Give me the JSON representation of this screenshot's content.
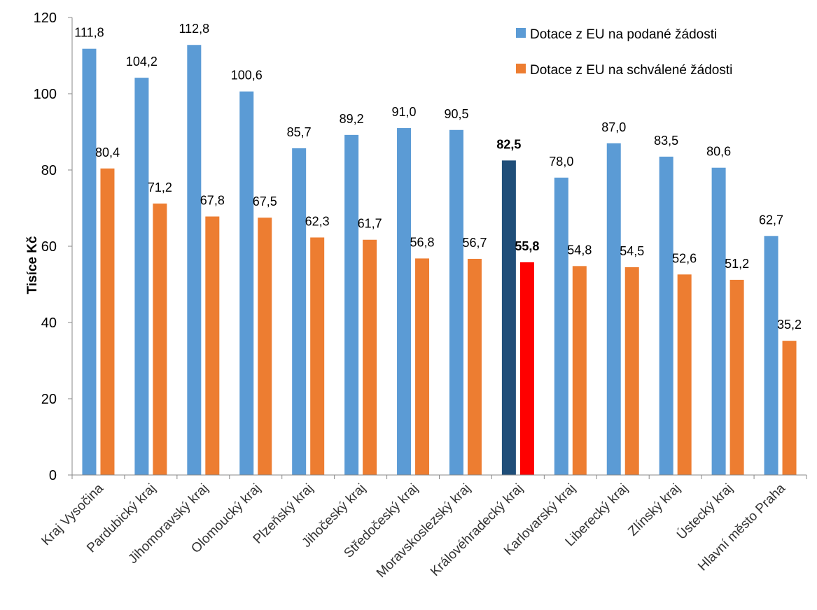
{
  "chart_data": {
    "type": "bar",
    "title": "",
    "xlabel": "",
    "ylabel": "Tisíce Kč",
    "ylim": [
      0,
      120
    ],
    "yticks": [
      "0",
      "20",
      "40",
      "60",
      "80",
      "100",
      "120"
    ],
    "grid": false,
    "legend_position": "top-right",
    "categories": [
      "Kraj Vysočina",
      "Pardubický kraj",
      "Jihomoravský kraj",
      "Olomoucký kraj",
      "Plzeňský kraj",
      "Jihočeský kraj",
      "Středočeský kraj",
      "Moravskoslezský kraj",
      "Královéhradecký kraj",
      "Karlovarský kraj",
      "Liberecký kraj",
      "Zlínský kraj",
      "Ústecký kraj",
      "Hlavní město Praha"
    ],
    "highlight_index": 8,
    "series": [
      {
        "name": "Dotace z EU na podané žádosti",
        "color": "#5B9BD5",
        "highlight_color": "#1F4E79",
        "values": [
          111.8,
          104.2,
          112.8,
          100.6,
          85.7,
          89.2,
          91.0,
          90.5,
          82.5,
          78.0,
          87.0,
          83.5,
          80.6,
          62.7
        ],
        "labels": [
          "111,8",
          "104,2",
          "112,8",
          "100,6",
          "85,7",
          "89,2",
          "91,0",
          "90,5",
          "82,5",
          "78,0",
          "87,0",
          "83,5",
          "80,6",
          "62,7"
        ]
      },
      {
        "name": "Dotace z EU na schválené žádosti",
        "color": "#ED7D31",
        "highlight_color": "#FF0000",
        "values": [
          80.4,
          71.2,
          67.8,
          67.5,
          62.3,
          61.7,
          56.8,
          56.7,
          55.8,
          54.8,
          54.5,
          52.6,
          51.2,
          35.2
        ],
        "labels": [
          "80,4",
          "71,2",
          "67,8",
          "67,5",
          "62,3",
          "61,7",
          "56,8",
          "56,7",
          "55,8",
          "54,8",
          "54,5",
          "52,6",
          "51,2",
          "35,2"
        ]
      }
    ]
  }
}
